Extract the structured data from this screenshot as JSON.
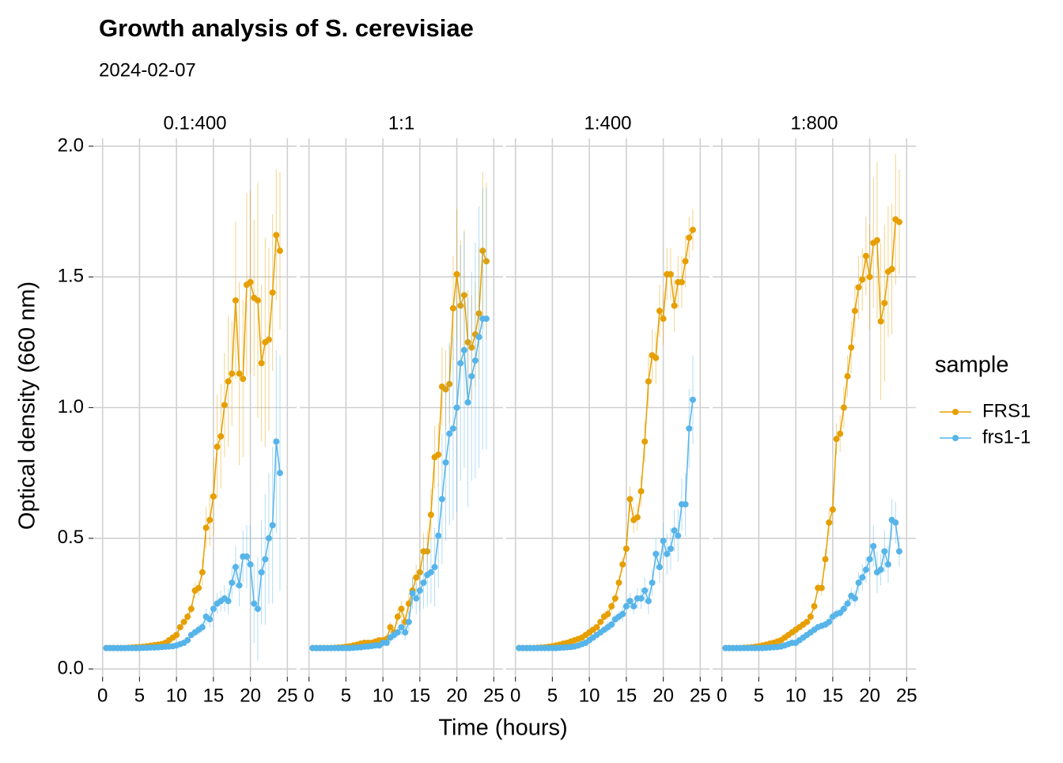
{
  "chart_data": {
    "type": "line",
    "title": "Growth analysis of S. cerevisiae",
    "subtitle": "2024-02-07",
    "x_label": "Time (hours)",
    "y_label": "Optical density (660 nm)",
    "legend_title": "sample",
    "grid": true,
    "legend_position": "right",
    "xlim": [
      -1.25,
      26.25
    ],
    "ylim": [
      -0.03,
      2.03
    ],
    "xticks": [
      0,
      5,
      10,
      15,
      20,
      25
    ],
    "yticks": [
      {
        "value": 0,
        "label": "0.0"
      },
      0.5,
      {
        "value": 1,
        "label": "1.0"
      },
      1.5,
      {
        "value": 2,
        "label": "2.0"
      }
    ],
    "series": [
      {
        "name": "FRS1",
        "color": "#E69F00"
      },
      {
        "name": "frs1-1",
        "color": "#56B4E9"
      }
    ],
    "x": [
      0.5,
      1,
      1.5,
      2,
      2.5,
      3,
      3.5,
      4,
      4.5,
      5,
      5.5,
      6,
      6.5,
      7,
      7.5,
      8,
      8.5,
      9,
      9.5,
      10,
      10.5,
      11,
      11.5,
      12,
      12.5,
      13,
      13.5,
      14,
      14.5,
      15,
      15.5,
      16,
      16.5,
      17,
      17.5,
      18,
      18.5,
      19,
      19.5,
      20,
      20.5,
      21,
      21.5,
      22,
      22.5,
      23,
      23.5,
      24
    ],
    "facets": [
      {
        "label": "0.1:400",
        "values": [
          [
            0.08,
            0.08,
            0.08,
            0.08,
            0.08,
            0.08,
            0.081,
            0.082,
            0.083,
            0.084,
            0.085,
            0.087,
            0.089,
            0.091,
            0.093,
            0.095,
            0.1,
            0.11,
            0.12,
            0.13,
            0.16,
            0.18,
            0.2,
            0.23,
            0.3,
            0.31,
            0.37,
            0.54,
            0.57,
            0.66,
            0.85,
            0.89,
            1.01,
            1.1,
            1.13,
            1.41,
            1.13,
            1.11,
            1.47,
            1.48,
            1.42,
            1.41,
            1.17,
            1.25,
            1.26,
            1.44,
            1.66,
            1.6
          ],
          [
            0.08,
            0.08,
            0.08,
            0.08,
            0.08,
            0.08,
            0.08,
            0.08,
            0.08,
            0.08,
            0.081,
            0.081,
            0.082,
            0.082,
            0.083,
            0.084,
            0.085,
            0.086,
            0.087,
            0.09,
            0.095,
            0.1,
            0.11,
            0.13,
            0.14,
            0.15,
            0.16,
            0.2,
            0.19,
            0.23,
            0.25,
            0.26,
            0.27,
            0.26,
            0.33,
            0.39,
            0.32,
            0.43,
            0.43,
            0.4,
            0.25,
            0.23,
            0.37,
            0.42,
            0.5,
            0.55,
            0.87,
            0.75
          ]
        ],
        "errors": [
          [
            0.01,
            0.01,
            0.01,
            0.01,
            0.01,
            0.01,
            0.01,
            0.01,
            0.01,
            0.01,
            0.01,
            0.01,
            0.01,
            0.01,
            0.01,
            0.01,
            0.01,
            0.01,
            0.01,
            0.01,
            0.01,
            0.01,
            0.02,
            0.02,
            0.03,
            0.03,
            0.05,
            0.08,
            0.1,
            0.15,
            0.2,
            0.2,
            0.2,
            0.25,
            0.2,
            0.3,
            0.35,
            0.3,
            0.35,
            0.35,
            0.3,
            0.45,
            0.3,
            0.4,
            0.35,
            0.3,
            0.25,
            0.3
          ],
          [
            0.01,
            0.01,
            0.01,
            0.01,
            0.01,
            0.01,
            0.01,
            0.01,
            0.01,
            0.01,
            0.01,
            0.01,
            0.01,
            0.01,
            0.01,
            0.01,
            0.01,
            0.01,
            0.01,
            0.01,
            0.01,
            0.01,
            0.01,
            0.01,
            0.01,
            0.02,
            0.02,
            0.03,
            0.03,
            0.03,
            0.04,
            0.04,
            0.05,
            0.05,
            0.06,
            0.08,
            0.08,
            0.1,
            0.12,
            0.15,
            0.15,
            0.2,
            0.2,
            0.25,
            0.25,
            0.3,
            0.35,
            0.45
          ]
        ]
      },
      {
        "label": "1:1",
        "values": [
          [
            0.08,
            0.08,
            0.08,
            0.08,
            0.08,
            0.08,
            0.081,
            0.082,
            0.083,
            0.085,
            0.087,
            0.09,
            0.093,
            0.097,
            0.1,
            0.1,
            0.1,
            0.105,
            0.11,
            0.11,
            0.115,
            0.16,
            0.14,
            0.2,
            0.23,
            0.18,
            0.25,
            0.3,
            0.35,
            0.37,
            0.45,
            0.45,
            0.59,
            0.81,
            0.82,
            1.08,
            1.07,
            1.09,
            1.38,
            1.51,
            1.39,
            1.43,
            1.25,
            1.23,
            1.28,
            1.36,
            1.6,
            1.56
          ],
          [
            0.08,
            0.08,
            0.08,
            0.08,
            0.08,
            0.08,
            0.08,
            0.08,
            0.08,
            0.08,
            0.08,
            0.081,
            0.082,
            0.083,
            0.085,
            0.086,
            0.088,
            0.09,
            0.09,
            0.1,
            0.1,
            0.12,
            0.13,
            0.14,
            0.16,
            0.14,
            0.18,
            0.29,
            0.27,
            0.3,
            0.33,
            0.36,
            0.37,
            0.39,
            0.51,
            0.65,
            0.79,
            0.9,
            0.92,
            1.0,
            1.17,
            1.22,
            1.02,
            1.12,
            1.18,
            1.27,
            1.34,
            1.34
          ]
        ],
        "errors": [
          [
            0.01,
            0.01,
            0.01,
            0.01,
            0.01,
            0.01,
            0.01,
            0.01,
            0.01,
            0.01,
            0.01,
            0.01,
            0.01,
            0.01,
            0.01,
            0.01,
            0.01,
            0.01,
            0.01,
            0.01,
            0.02,
            0.02,
            0.02,
            0.03,
            0.03,
            0.03,
            0.04,
            0.05,
            0.05,
            0.06,
            0.07,
            0.08,
            0.1,
            0.12,
            0.12,
            0.15,
            0.15,
            0.15,
            0.2,
            0.25,
            0.25,
            0.25,
            0.2,
            0.2,
            0.2,
            0.25,
            0.3,
            0.3
          ],
          [
            0.01,
            0.01,
            0.01,
            0.01,
            0.01,
            0.01,
            0.01,
            0.01,
            0.01,
            0.01,
            0.01,
            0.01,
            0.01,
            0.01,
            0.01,
            0.01,
            0.01,
            0.01,
            0.01,
            0.01,
            0.01,
            0.02,
            0.02,
            0.02,
            0.03,
            0.03,
            0.04,
            0.06,
            0.06,
            0.08,
            0.1,
            0.12,
            0.12,
            0.15,
            0.2,
            0.25,
            0.3,
            0.35,
            0.35,
            0.4,
            0.45,
            0.45,
            0.4,
            0.4,
            0.45,
            0.5,
            0.5,
            0.5
          ]
        ]
      },
      {
        "label": "1:400",
        "values": [
          [
            0.08,
            0.08,
            0.08,
            0.08,
            0.08,
            0.081,
            0.082,
            0.083,
            0.085,
            0.087,
            0.09,
            0.093,
            0.097,
            0.1,
            0.105,
            0.11,
            0.115,
            0.12,
            0.13,
            0.14,
            0.15,
            0.16,
            0.18,
            0.2,
            0.21,
            0.24,
            0.27,
            0.33,
            0.4,
            0.46,
            0.65,
            0.57,
            0.58,
            0.68,
            0.87,
            1.1,
            1.2,
            1.19,
            1.37,
            1.34,
            1.51,
            1.51,
            1.39,
            1.48,
            1.48,
            1.56,
            1.65,
            1.68
          ],
          [
            0.08,
            0.08,
            0.08,
            0.08,
            0.08,
            0.08,
            0.08,
            0.08,
            0.08,
            0.08,
            0.08,
            0.081,
            0.082,
            0.083,
            0.084,
            0.086,
            0.09,
            0.095,
            0.1,
            0.11,
            0.12,
            0.13,
            0.14,
            0.15,
            0.16,
            0.17,
            0.19,
            0.2,
            0.21,
            0.24,
            0.26,
            0.24,
            0.27,
            0.27,
            0.3,
            0.26,
            0.33,
            0.44,
            0.39,
            0.49,
            0.44,
            0.46,
            0.53,
            0.51,
            0.63,
            0.63,
            0.92,
            1.03
          ]
        ],
        "errors": [
          [
            0.01,
            0.01,
            0.01,
            0.01,
            0.01,
            0.01,
            0.01,
            0.01,
            0.01,
            0.01,
            0.01,
            0.01,
            0.01,
            0.01,
            0.01,
            0.01,
            0.01,
            0.01,
            0.01,
            0.01,
            0.01,
            0.01,
            0.01,
            0.02,
            0.02,
            0.02,
            0.02,
            0.03,
            0.03,
            0.04,
            0.05,
            0.05,
            0.05,
            0.06,
            0.08,
            0.1,
            0.1,
            0.1,
            0.1,
            0.1,
            0.1,
            0.1,
            0.1,
            0.1,
            0.1,
            0.1,
            0.08,
            0.08
          ],
          [
            0.01,
            0.01,
            0.01,
            0.01,
            0.01,
            0.01,
            0.01,
            0.01,
            0.01,
            0.01,
            0.01,
            0.01,
            0.01,
            0.01,
            0.01,
            0.01,
            0.01,
            0.01,
            0.01,
            0.01,
            0.01,
            0.01,
            0.01,
            0.01,
            0.02,
            0.02,
            0.02,
            0.02,
            0.03,
            0.03,
            0.03,
            0.03,
            0.04,
            0.04,
            0.05,
            0.05,
            0.05,
            0.06,
            0.06,
            0.07,
            0.08,
            0.08,
            0.08,
            0.1,
            0.1,
            0.12,
            0.15,
            0.17
          ]
        ]
      },
      {
        "label": "1:800",
        "values": [
          [
            0.08,
            0.08,
            0.08,
            0.08,
            0.08,
            0.081,
            0.082,
            0.083,
            0.085,
            0.087,
            0.09,
            0.093,
            0.097,
            0.1,
            0.105,
            0.11,
            0.12,
            0.13,
            0.14,
            0.15,
            0.16,
            0.17,
            0.18,
            0.2,
            0.24,
            0.31,
            0.31,
            0.42,
            0.56,
            0.61,
            0.88,
            0.9,
            1.0,
            1.12,
            1.23,
            1.37,
            1.46,
            1.49,
            1.58,
            1.5,
            1.63,
            1.64,
            1.33,
            1.4,
            1.52,
            1.53,
            1.72,
            1.71
          ],
          [
            0.08,
            0.08,
            0.08,
            0.08,
            0.08,
            0.08,
            0.08,
            0.08,
            0.08,
            0.08,
            0.08,
            0.081,
            0.082,
            0.083,
            0.084,
            0.086,
            0.09,
            0.095,
            0.1,
            0.1,
            0.11,
            0.12,
            0.13,
            0.14,
            0.15,
            0.16,
            0.165,
            0.17,
            0.18,
            0.2,
            0.21,
            0.215,
            0.23,
            0.25,
            0.28,
            0.27,
            0.33,
            0.35,
            0.38,
            0.42,
            0.47,
            0.37,
            0.38,
            0.45,
            0.4,
            0.57,
            0.56,
            0.45
          ]
        ],
        "errors": [
          [
            0.01,
            0.01,
            0.01,
            0.01,
            0.01,
            0.01,
            0.01,
            0.01,
            0.01,
            0.01,
            0.01,
            0.01,
            0.01,
            0.01,
            0.01,
            0.01,
            0.01,
            0.01,
            0.01,
            0.01,
            0.01,
            0.01,
            0.01,
            0.02,
            0.02,
            0.02,
            0.03,
            0.04,
            0.05,
            0.06,
            0.06,
            0.07,
            0.08,
            0.08,
            0.1,
            0.1,
            0.12,
            0.12,
            0.15,
            0.2,
            0.25,
            0.3,
            0.3,
            0.3,
            0.25,
            0.25,
            0.25,
            0.2
          ],
          [
            0.01,
            0.01,
            0.01,
            0.01,
            0.01,
            0.01,
            0.01,
            0.01,
            0.01,
            0.01,
            0.01,
            0.01,
            0.01,
            0.01,
            0.01,
            0.01,
            0.01,
            0.01,
            0.01,
            0.01,
            0.01,
            0.01,
            0.01,
            0.01,
            0.01,
            0.01,
            0.01,
            0.01,
            0.02,
            0.02,
            0.02,
            0.02,
            0.02,
            0.02,
            0.03,
            0.03,
            0.04,
            0.05,
            0.05,
            0.06,
            0.08,
            0.08,
            0.06,
            0.08,
            0.07,
            0.08,
            0.08,
            0.06
          ]
        ]
      }
    ]
  }
}
